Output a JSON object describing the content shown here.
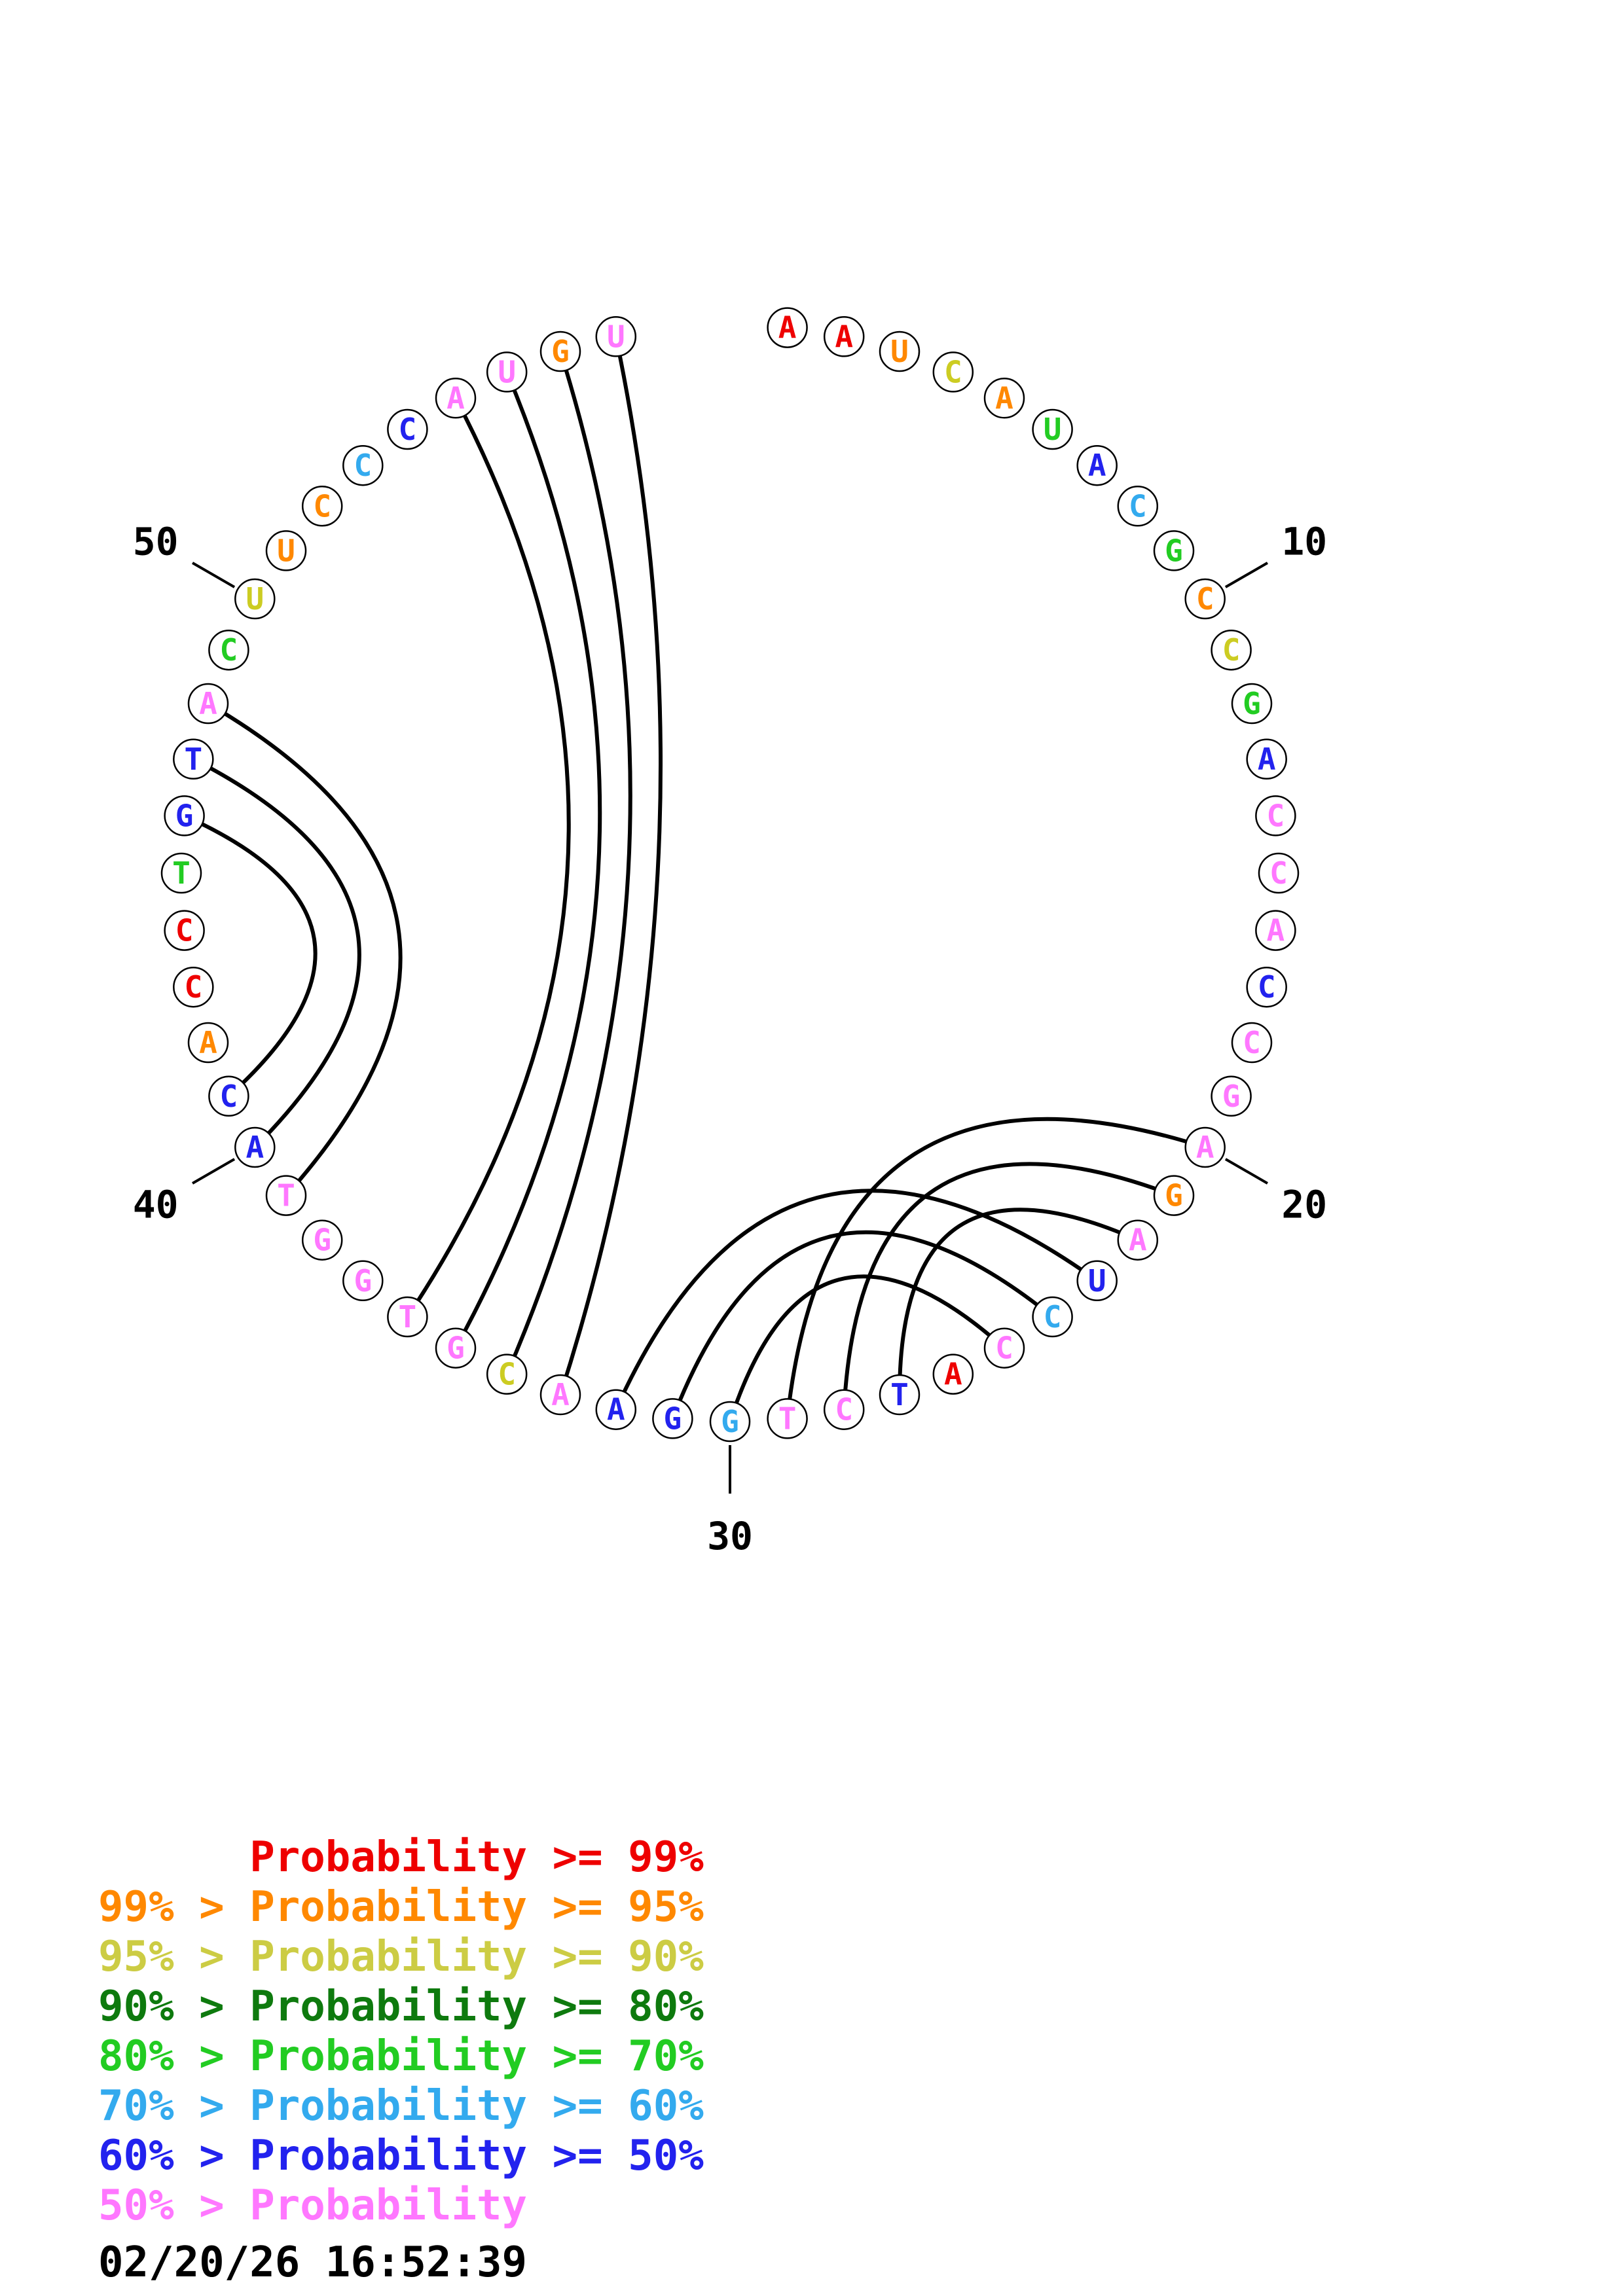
{
  "plot": {
    "arc_color": "#000000",
    "sequence": [
      {
        "b": "A",
        "c": "#ee0000"
      },
      {
        "b": "A",
        "c": "#ee0000"
      },
      {
        "b": "U",
        "c": "#ff8800"
      },
      {
        "b": "C",
        "c": "#cccc22"
      },
      {
        "b": "A",
        "c": "#ff8800"
      },
      {
        "b": "U",
        "c": "#22cc22"
      },
      {
        "b": "A",
        "c": "#2222ee"
      },
      {
        "b": "C",
        "c": "#33aaee"
      },
      {
        "b": "G",
        "c": "#22cc22"
      },
      {
        "b": "C",
        "c": "#ff8800"
      },
      {
        "b": "C",
        "c": "#cccc22"
      },
      {
        "b": "G",
        "c": "#22cc22"
      },
      {
        "b": "A",
        "c": "#2222ee"
      },
      {
        "b": "C",
        "c": "#ff77ff"
      },
      {
        "b": "C",
        "c": "#ff77ff"
      },
      {
        "b": "A",
        "c": "#ff77ff"
      },
      {
        "b": "C",
        "c": "#2222ee"
      },
      {
        "b": "C",
        "c": "#ff77ff"
      },
      {
        "b": "G",
        "c": "#ff77ff"
      },
      {
        "b": "A",
        "c": "#ff77ff"
      },
      {
        "b": "G",
        "c": "#ff8800"
      },
      {
        "b": "A",
        "c": "#ff77ff"
      },
      {
        "b": "U",
        "c": "#2222ee"
      },
      {
        "b": "C",
        "c": "#33aaee"
      },
      {
        "b": "C",
        "c": "#ff77ff"
      },
      {
        "b": "A",
        "c": "#ee0000"
      },
      {
        "b": "T",
        "c": "#2222ee"
      },
      {
        "b": "C",
        "c": "#ff77ff"
      },
      {
        "b": "T",
        "c": "#ff77ff"
      },
      {
        "b": "G",
        "c": "#33aaee"
      },
      {
        "b": "G",
        "c": "#2222ee"
      },
      {
        "b": "A",
        "c": "#2222ee"
      },
      {
        "b": "A",
        "c": "#ff77ff"
      },
      {
        "b": "C",
        "c": "#cccc22"
      },
      {
        "b": "G",
        "c": "#ff77ff"
      },
      {
        "b": "T",
        "c": "#ff77ff"
      },
      {
        "b": "G",
        "c": "#ff77ff"
      },
      {
        "b": "G",
        "c": "#ff77ff"
      },
      {
        "b": "T",
        "c": "#ff77ff"
      },
      {
        "b": "A",
        "c": "#2222ee"
      },
      {
        "b": "C",
        "c": "#2222ee"
      },
      {
        "b": "A",
        "c": "#ff8800"
      },
      {
        "b": "C",
        "c": "#ee0000"
      },
      {
        "b": "C",
        "c": "#ee0000"
      },
      {
        "b": "T",
        "c": "#22cc22"
      },
      {
        "b": "G",
        "c": "#2222ee"
      },
      {
        "b": "T",
        "c": "#2222ee"
      },
      {
        "b": "A",
        "c": "#ff77ff"
      },
      {
        "b": "C",
        "c": "#22cc22"
      },
      {
        "b": "U",
        "c": "#cccc22"
      },
      {
        "b": "U",
        "c": "#ff8800"
      },
      {
        "b": "C",
        "c": "#ff8800"
      },
      {
        "b": "C",
        "c": "#33aaee"
      },
      {
        "b": "C",
        "c": "#2222ee"
      },
      {
        "b": "A",
        "c": "#ff77ff"
      },
      {
        "b": "U",
        "c": "#ff77ff"
      },
      {
        "b": "G",
        "c": "#ff8800"
      },
      {
        "b": "U",
        "c": "#ff77ff"
      }
    ],
    "pairs": [
      [
        20,
        29
      ],
      [
        21,
        28
      ],
      [
        22,
        27
      ],
      [
        23,
        32
      ],
      [
        24,
        31
      ],
      [
        25,
        30
      ],
      [
        46,
        41
      ],
      [
        47,
        40
      ],
      [
        48,
        39
      ],
      [
        55,
        36
      ],
      [
        56,
        35
      ],
      [
        57,
        34
      ],
      [
        58,
        33
      ]
    ],
    "position_labels": [
      {
        "value": "10",
        "at": 10
      },
      {
        "value": "20",
        "at": 20
      },
      {
        "value": "30",
        "at": 30
      },
      {
        "value": "40",
        "at": 40
      },
      {
        "value": "50",
        "at": 50
      }
    ]
  },
  "legend": {
    "rows": [
      {
        "text": "      Probability >= 99%",
        "color": "#ee0000"
      },
      {
        "text": "99% > Probability >= 95%",
        "color": "#ff8800"
      },
      {
        "text": "95% > Probability >= 90%",
        "color": "#cccc44"
      },
      {
        "text": "90% > Probability >= 80%",
        "color": "#0e7a0e"
      },
      {
        "text": "80% > Probability >= 70%",
        "color": "#22cc22"
      },
      {
        "text": "70% > Probability >= 60%",
        "color": "#33aaee"
      },
      {
        "text": "60% > Probability >= 50%",
        "color": "#2222ee"
      },
      {
        "text": "50% > Probability",
        "color": "#ff77ff"
      }
    ]
  },
  "timestamp": "02/20/26 16:52:39"
}
